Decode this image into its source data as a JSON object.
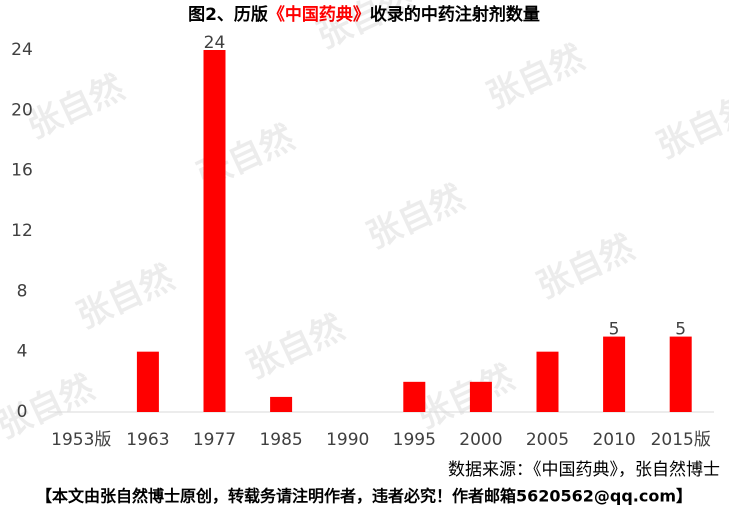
{
  "chart_data": {
    "type": "bar",
    "title_parts": [
      {
        "text": "图2、历版",
        "color": "#000000"
      },
      {
        "text": "《中国药典》",
        "color": "#ff0000"
      },
      {
        "text": "收录的中药注射剂数量",
        "color": "#000000"
      }
    ],
    "categories": [
      "1953版",
      "1963",
      "1977",
      "1985",
      "1990",
      "1995",
      "2000",
      "2005",
      "2010",
      "2015版"
    ],
    "values": [
      0,
      4,
      24,
      1,
      0,
      2,
      2,
      4,
      5,
      5
    ],
    "value_labels": [
      null,
      null,
      "24",
      null,
      null,
      null,
      null,
      null,
      "5",
      "5"
    ],
    "color": "#ff0000",
    "ylim": [
      0,
      24
    ],
    "yticks": [
      0,
      4,
      8,
      12,
      16,
      20,
      24
    ],
    "grid": false,
    "source": "数据来源：《中国药典》，张自然博士",
    "footer": "【本文由张自然博士原创，转载务请注明作者，违者必究！作者邮箱5620562@qq.com】",
    "watermark": "张自然"
  }
}
